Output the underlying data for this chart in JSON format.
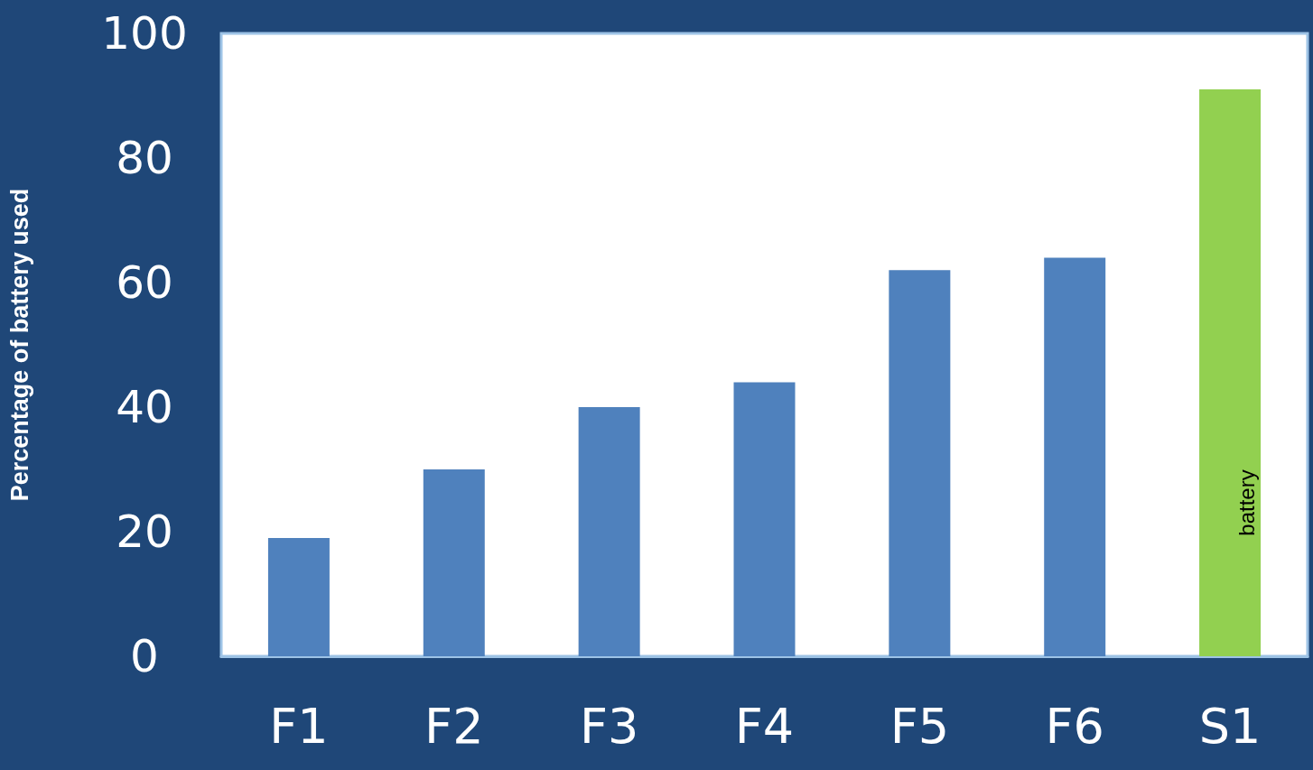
{
  "chart_data": {
    "type": "bar",
    "ylabel": "Percentage of battery used",
    "categories": [
      "F1",
      "F2",
      "F3",
      "F4",
      "F5",
      "F6",
      "S1"
    ],
    "values": [
      19,
      30,
      40,
      44,
      62,
      64,
      91
    ],
    "colors": [
      "#4f81bd",
      "#4f81bd",
      "#4f81bd",
      "#4f81bd",
      "#4f81bd",
      "#4f81bd",
      "#92d050"
    ],
    "ylim": [
      0,
      100
    ],
    "yticks": [
      0,
      20,
      40,
      60,
      80,
      100
    ],
    "grid": false,
    "annotations": [
      "battery"
    ]
  }
}
